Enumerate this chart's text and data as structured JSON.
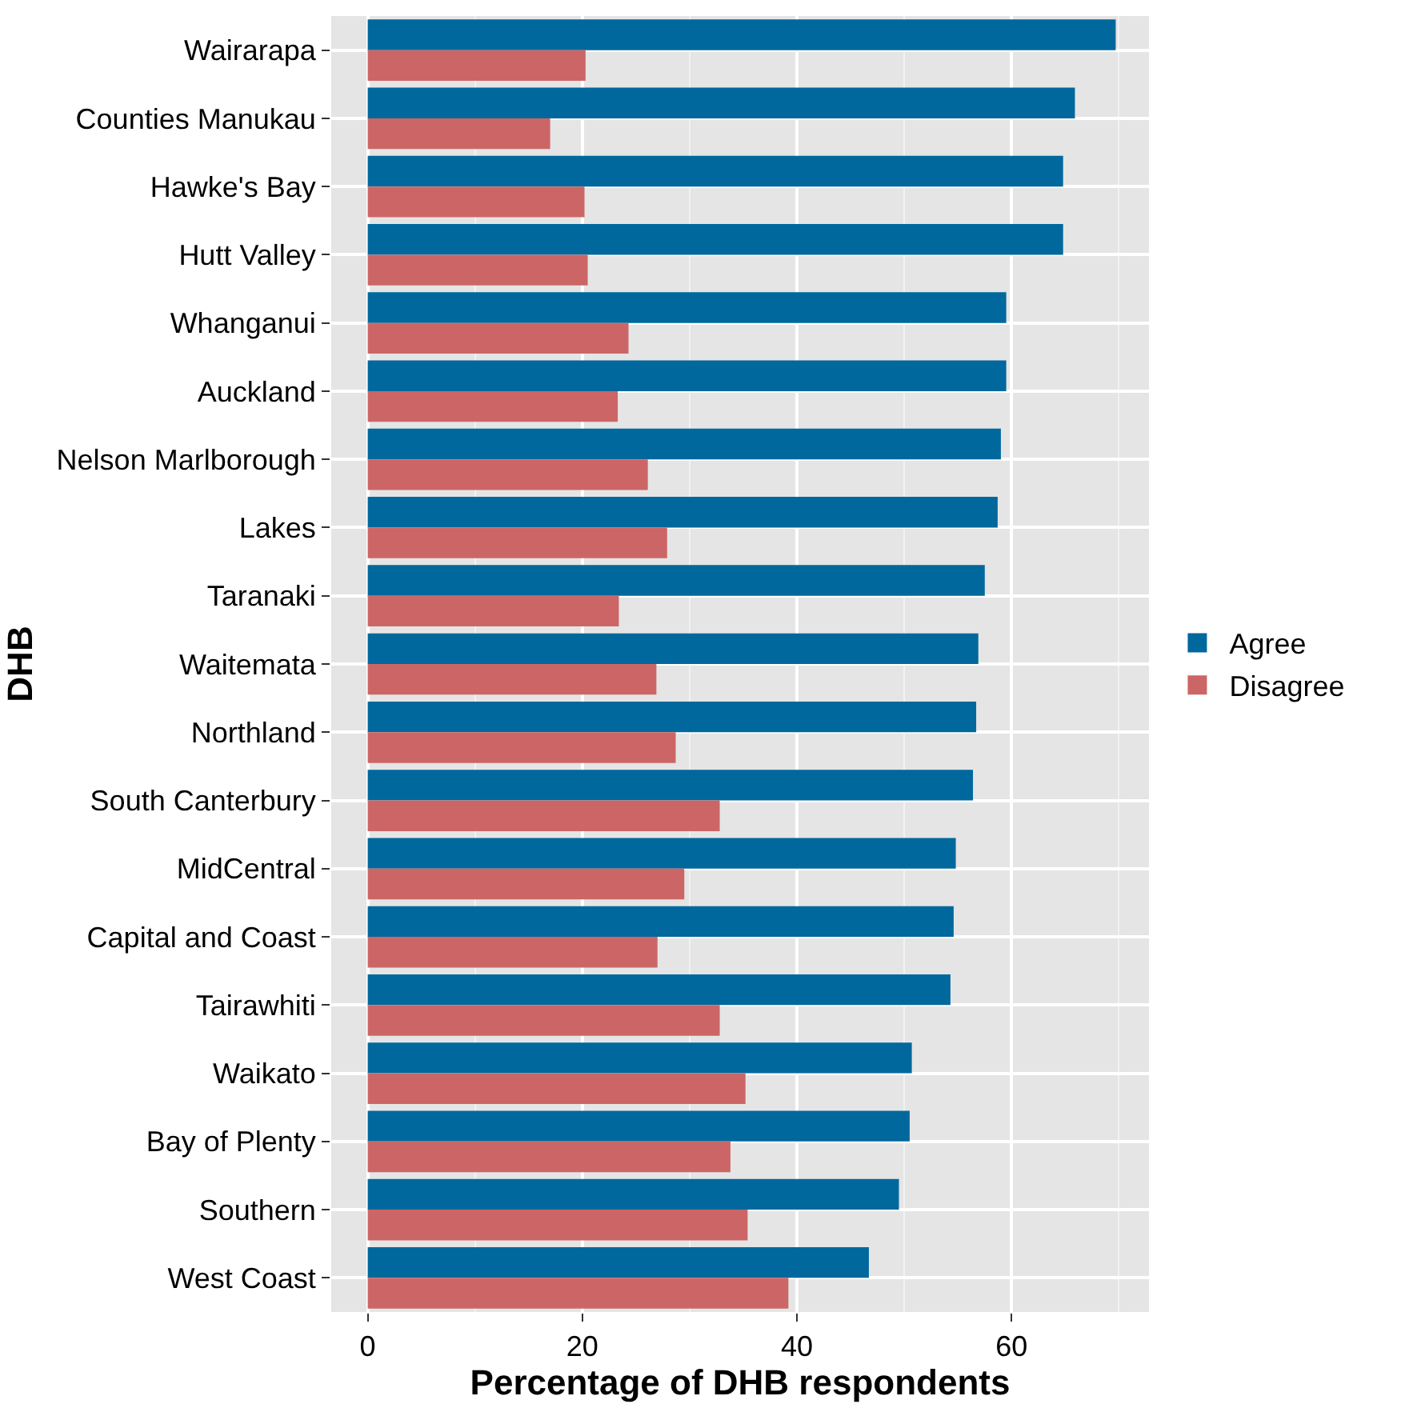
{
  "chart_data": {
    "type": "bar",
    "orientation": "horizontal",
    "xlabel": "Percentage of DHB respondents",
    "ylabel": "DHB",
    "categories": [
      "Wairarapa",
      "Counties Manukau",
      "Hawke's Bay",
      "Hutt Valley",
      "Whanganui",
      "Auckland",
      "Nelson Marlborough",
      "Lakes",
      "Taranaki",
      "Waitemata",
      "Northland",
      "South Canterbury",
      "MidCentral",
      "Capital and Coast",
      "Tairawhiti",
      "Waikato",
      "Bay of Plenty",
      "Southern",
      "West Coast"
    ],
    "series": [
      {
        "name": "Agree",
        "color": "#00689d",
        "values": [
          69.7,
          65.9,
          64.8,
          64.8,
          59.5,
          59.5,
          59.0,
          58.7,
          57.5,
          56.9,
          56.7,
          56.4,
          54.8,
          54.6,
          54.3,
          50.7,
          50.5,
          49.5,
          46.7
        ]
      },
      {
        "name": "Disagree",
        "color": "#cc6666",
        "values": [
          20.3,
          17.0,
          20.2,
          20.5,
          24.3,
          23.3,
          26.1,
          27.9,
          23.4,
          26.9,
          28.7,
          32.8,
          29.5,
          27.0,
          32.8,
          35.2,
          33.8,
          35.4,
          39.2
        ]
      }
    ],
    "xlim": [
      -3.4,
      72.8
    ],
    "xticks": [
      0,
      20,
      40,
      60
    ],
    "grid": true,
    "legend": "right"
  }
}
